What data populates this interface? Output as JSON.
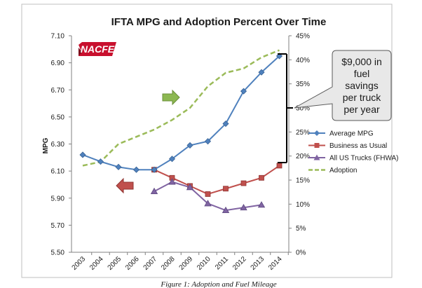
{
  "chart_data": {
    "type": "line",
    "title": "IFTA MPG and Adoption Percent Over Time",
    "ylabel": "MPG",
    "xlabel": "",
    "categories": [
      "2003",
      "2004",
      "2005",
      "2006",
      "2007",
      "2008",
      "2009",
      "2010",
      "2011",
      "2012",
      "2013",
      "2014"
    ],
    "ylim": [
      5.5,
      7.1
    ],
    "y_ticks": [
      "5.50",
      "5.70",
      "5.90",
      "6.10",
      "6.30",
      "6.50",
      "6.70",
      "6.90",
      "7.10"
    ],
    "y_tick_values": [
      5.5,
      5.7,
      5.9,
      6.1,
      6.3,
      6.5,
      6.7,
      6.9,
      7.1
    ],
    "y2lim": [
      0,
      45
    ],
    "y2_ticks": [
      "0%",
      "5%",
      "10%",
      "15%",
      "20%",
      "25%",
      "30%",
      "35%",
      "40%",
      "45%"
    ],
    "y2_tick_values": [
      0,
      5,
      10,
      15,
      20,
      25,
      30,
      35,
      40,
      45
    ],
    "series": [
      {
        "name": "Average MPG",
        "axis": "left",
        "color": "#4f81bd",
        "marker": "diamond",
        "dash": false,
        "values": [
          6.22,
          6.17,
          6.13,
          6.11,
          6.11,
          6.19,
          6.29,
          6.32,
          6.45,
          6.69,
          6.83,
          6.95
        ]
      },
      {
        "name": "Business as Usual",
        "axis": "left",
        "color": "#c0504d",
        "marker": "square",
        "dash": false,
        "values": [
          null,
          null,
          null,
          null,
          6.11,
          6.05,
          5.99,
          5.93,
          5.97,
          6.01,
          6.05,
          6.14
        ]
      },
      {
        "name": "All US Trucks (FHWA)",
        "axis": "left",
        "color": "#8064a2",
        "marker": "triangle",
        "dash": false,
        "values": [
          null,
          null,
          null,
          null,
          5.95,
          6.02,
          5.98,
          5.86,
          5.81,
          5.83,
          5.85,
          null
        ]
      },
      {
        "name": "Adoption",
        "axis": "right",
        "color": "#9bbb59",
        "marker": "none",
        "dash": true,
        "values": [
          18.0,
          18.8,
          22.5,
          24.0,
          25.5,
          27.5,
          30.0,
          34.5,
          37.3,
          38.2,
          40.5,
          42.0
        ]
      }
    ],
    "legend_position": "right",
    "annotations": [
      "$9,000 in",
      "fuel",
      "savings",
      "per truck",
      "per year"
    ]
  },
  "logo_text": "NACFE",
  "caption": "Figure 1: Adoption and Fuel Mileage",
  "colors": {
    "green_arrow": "#8cb851",
    "red_arrow": "#c0504d",
    "logo_red": "#c8102e"
  }
}
